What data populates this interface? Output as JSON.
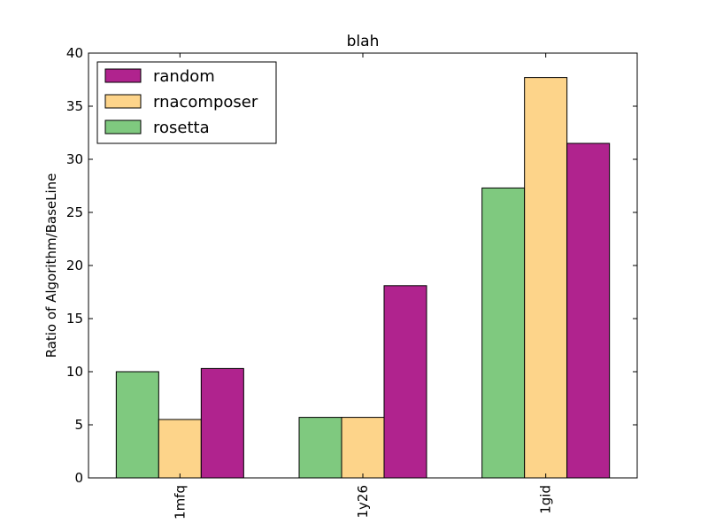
{
  "chart_data": {
    "type": "bar",
    "title": "blah",
    "xlabel": "",
    "ylabel": "Ratio of Algorithm/BaseLine",
    "categories": [
      "1mfq",
      "1y26",
      "1gid"
    ],
    "ylim": [
      0,
      40
    ],
    "yticks": [
      0,
      5,
      10,
      15,
      20,
      25,
      30,
      35,
      40
    ],
    "grid": false,
    "legend_position": "top-left",
    "legend_order": [
      "random",
      "rnacomposer",
      "rosetta"
    ],
    "series": [
      {
        "name": "rosetta",
        "color": "#7fc97f",
        "values": [
          10.0,
          5.7,
          27.3
        ]
      },
      {
        "name": "rnacomposer",
        "color": "#fdd48a",
        "values": [
          5.5,
          5.7,
          37.7
        ]
      },
      {
        "name": "random",
        "color": "#b0238e",
        "values": [
          10.3,
          18.1,
          31.5
        ]
      }
    ]
  }
}
